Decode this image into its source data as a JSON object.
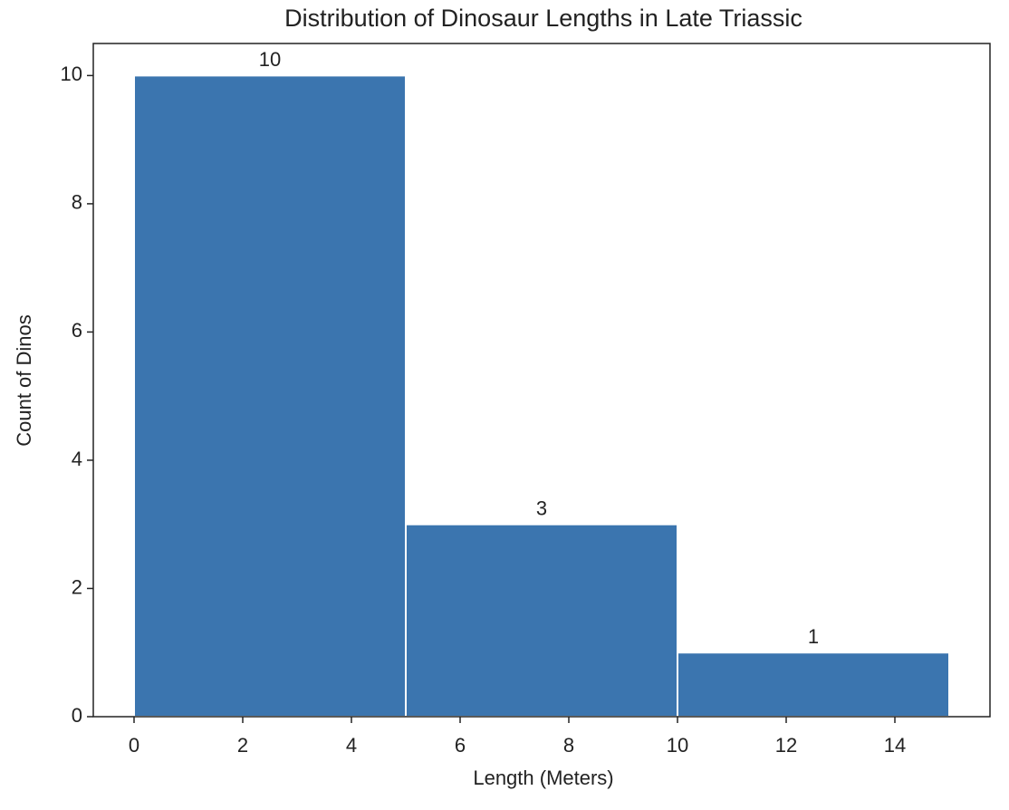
{
  "chart_data": {
    "type": "histogram",
    "title": "Distribution of Dinosaur Lengths in Late Triassic",
    "x_label": "Length (Meters)",
    "y_label": "Count of Dinos",
    "bins": [
      0,
      5,
      10,
      15
    ],
    "counts": [
      10,
      3,
      1
    ],
    "color": "#3b75af",
    "edge_color": "#ffffff",
    "xlim": [
      -0.75,
      15.75
    ],
    "xticks": [
      0,
      2,
      4,
      6,
      8,
      10,
      12,
      14
    ],
    "ylim": [
      0,
      10.5
    ],
    "yticks": [
      0,
      2,
      4,
      6,
      8,
      10
    ],
    "grid": false
  }
}
